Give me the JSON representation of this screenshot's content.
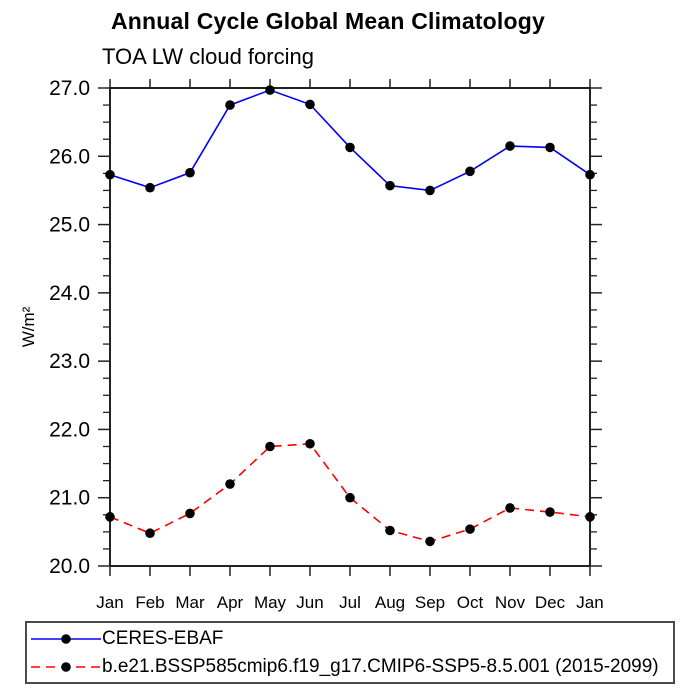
{
  "chart_data": {
    "type": "line",
    "title": "Annual Cycle Global Mean Climatology",
    "subtitle": "TOA LW cloud forcing",
    "x_categories": [
      "Jan",
      "Feb",
      "Mar",
      "Apr",
      "May",
      "Jun",
      "Jul",
      "Aug",
      "Sep",
      "Oct",
      "Nov",
      "Dec",
      "Jan"
    ],
    "ylabel": "W/m²",
    "ylim": [
      20.0,
      27.0
    ],
    "y_major_tick_step": 1.0,
    "y_minor_tick_step": 0.25,
    "y_tick_labels": [
      "20.0",
      "21.0",
      "22.0",
      "23.0",
      "24.0",
      "25.0",
      "26.0",
      "27.0"
    ],
    "grid": false,
    "legend_position": "bottom-box",
    "axis_color": "#222222",
    "marker_color": "#000000",
    "series": [
      {
        "name": "CERES-EBAF",
        "color": "#0000ff",
        "line_style": "solid",
        "marker": "filled-circle",
        "values": [
          25.73,
          25.54,
          25.76,
          26.75,
          26.97,
          26.76,
          26.13,
          25.57,
          25.5,
          25.78,
          26.15,
          26.13,
          25.73
        ]
      },
      {
        "name": "b.e21.BSSP585cmip6.f19_g17.CMIP6-SSP5-8.5.001 (2015-2099)",
        "color": "#ff0000",
        "line_style": "dashed",
        "marker": "filled-circle",
        "values": [
          20.72,
          20.48,
          20.77,
          21.2,
          21.75,
          21.79,
          21.0,
          20.52,
          20.36,
          20.54,
          20.85,
          20.79,
          20.72
        ]
      }
    ]
  }
}
